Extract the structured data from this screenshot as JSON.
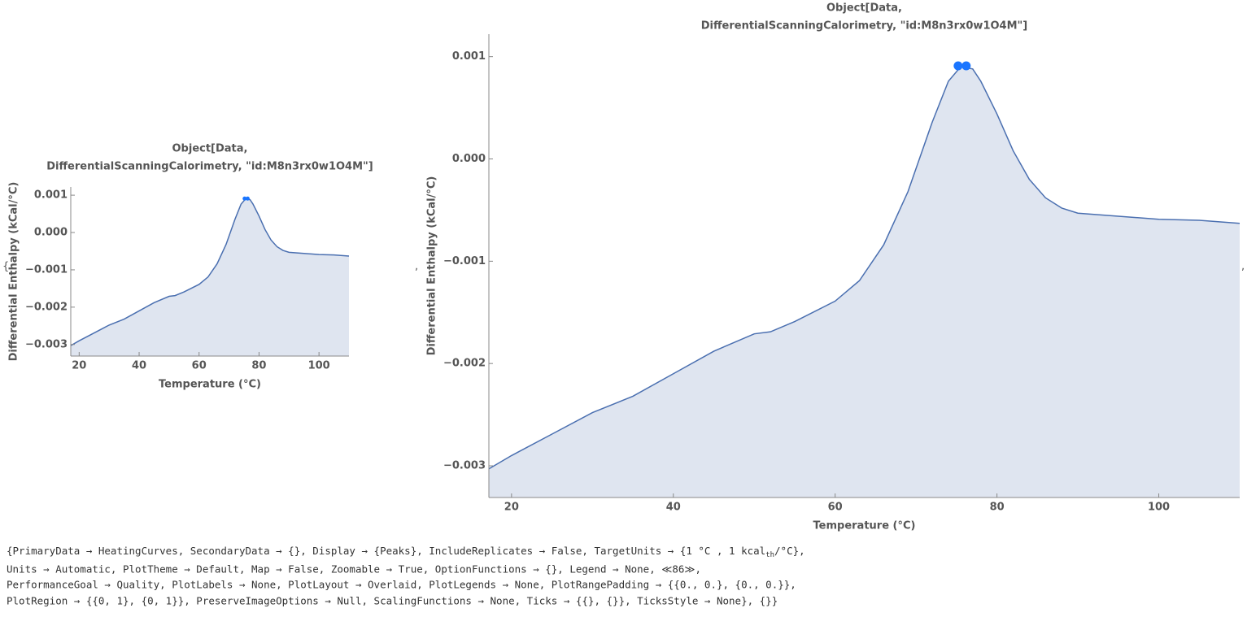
{
  "list_open": "{",
  "separator": ",",
  "chart_data": [
    {
      "type": "area",
      "title": [
        "Object[Data,",
        "DifferentialScanningCalorimetry, \"id:M8n3rx0w1O4M\"]"
      ],
      "x_label": "Temperature  (°C)",
      "y_label": "Differential Enthalpy  (kCal/°C)",
      "x": [
        17.2,
        20,
        25,
        30,
        35,
        40,
        45,
        50,
        52,
        55,
        60,
        63,
        66,
        69,
        72,
        74,
        75.5,
        77,
        78,
        80,
        82,
        84,
        86,
        88,
        90,
        95,
        100,
        105,
        110
      ],
      "values": [
        -0.00303,
        -0.0029,
        -0.00269,
        -0.00248,
        -0.00232,
        -0.0021,
        -0.00188,
        -0.00171,
        -0.00169,
        -0.00159,
        -0.00139,
        -0.00119,
        -0.00084,
        -0.00032,
        0.00036,
        0.00076,
        0.0009,
        0.00088,
        0.00076,
        0.00044,
        8e-05,
        -0.0002,
        -0.00038,
        -0.00048,
        -0.00053,
        -0.00056,
        -0.00059,
        -0.0006,
        -0.00063
      ],
      "color": "#4a6fb0",
      "fill_color": "#dfe5f0",
      "peaks": {
        "x": [
          75.2,
          76.2
        ],
        "values": [
          0.00091,
          0.00091
        ],
        "color": "#1a75ff"
      },
      "xlim": [
        17.2,
        110
      ],
      "ylim": [
        -0.00331,
        0.00122
      ],
      "xticks": [
        20,
        40,
        60,
        80,
        100
      ],
      "yticks": [
        0.001,
        {
          "value": 0,
          "label": "0.000"
        },
        {
          "value": -0.001,
          "label": "−0.001"
        },
        {
          "value": -0.002,
          "label": "−0.002"
        },
        {
          "value": -0.003,
          "label": "−0.003"
        }
      ]
    },
    {
      "type": "area",
      "title": [
        "Object[Data,",
        "DifferentialScanningCalorimetry, \"id:M8n3rx0w1O4M\"]"
      ],
      "x_label": "Temperature  (°C)",
      "y_label": "Differential Enthalpy  (kCal/°C)",
      "x": [
        17.2,
        20,
        25,
        30,
        35,
        40,
        45,
        50,
        52,
        55,
        60,
        63,
        66,
        69,
        72,
        74,
        75.5,
        77,
        78,
        80,
        82,
        84,
        86,
        88,
        90,
        95,
        100,
        105,
        110
      ],
      "values": [
        -0.00303,
        -0.0029,
        -0.00269,
        -0.00248,
        -0.00232,
        -0.0021,
        -0.00188,
        -0.00171,
        -0.00169,
        -0.00159,
        -0.00139,
        -0.00119,
        -0.00084,
        -0.00032,
        0.00036,
        0.00076,
        0.0009,
        0.00088,
        0.00076,
        0.00044,
        8e-05,
        -0.0002,
        -0.00038,
        -0.00048,
        -0.00053,
        -0.00056,
        -0.00059,
        -0.0006,
        -0.00063
      ],
      "color": "#4a6fb0",
      "fill_color": "#dfe5f0",
      "peaks": {
        "x": [
          75.2,
          76.2
        ],
        "values": [
          0.00091,
          0.00091
        ],
        "color": "#1a75ff"
      },
      "xlim": [
        17.2,
        110
      ],
      "ylim": [
        -0.00331,
        0.00122
      ],
      "xticks": [
        20,
        40,
        60,
        80,
        100
      ],
      "yticks": [
        0.001,
        {
          "value": 0,
          "label": "0.000"
        },
        {
          "value": -0.001,
          "label": "−0.001"
        },
        {
          "value": -0.002,
          "label": "−0.002"
        },
        {
          "value": -0.003,
          "label": "−0.003"
        }
      ]
    }
  ],
  "options": {
    "line0": [
      "{PrimaryData → HeatingCurves, SecondaryData → {}, Display → {Peaks}, IncludeReplicates → False, TargetUnits → {1 °C , 1 kcal",
      "th",
      "/°C},"
    ],
    "lines": [
      " Units → Automatic, PlotTheme → Default, Map → False, Zoomable → True, OptionFunctions → {}, Legend → None, ≪86≫,",
      " PerformanceGoal → Quality, PlotLabels → None, PlotLayout → Overlaid, PlotLegends → None, PlotRangePadding → {{0., 0.}, {0., 0.}},",
      " PlotRegion → {{0, 1}, {0, 1}}, PreserveImageOptions → Null, ScalingFunctions → None, Ticks → {{}, {}}, TicksStyle → None}, {}}"
    ]
  }
}
